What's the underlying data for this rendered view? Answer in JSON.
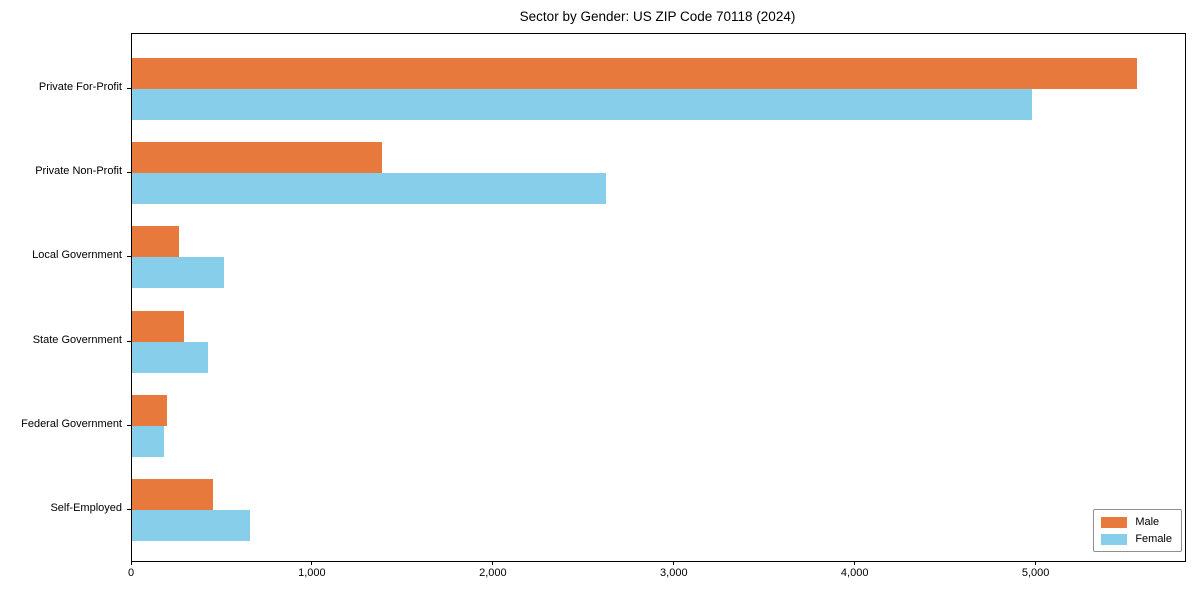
{
  "title": "Sector by Gender: US ZIP Code 70118 (2024)",
  "chart_data": {
    "type": "bar",
    "orientation": "horizontal",
    "title": "Sector by Gender: US ZIP Code 70118 (2024)",
    "categories": [
      "Private For-Profit",
      "Private Non-Profit",
      "Local Government",
      "State Government",
      "Federal Government",
      "Self-Employed"
    ],
    "series": [
      {
        "name": "Male",
        "color": "#E8793D",
        "values": [
          5555,
          1380,
          260,
          285,
          195,
          445
        ]
      },
      {
        "name": "Female",
        "color": "#87CEEB",
        "values": [
          4975,
          2620,
          510,
          420,
          175,
          650
        ]
      }
    ],
    "xlabel": "",
    "ylabel": "",
    "xlim": [
      0,
      5820
    ],
    "xticks": [
      0,
      1000,
      2000,
      3000,
      4000,
      5000
    ],
    "xtick_labels": [
      "0",
      "1,000",
      "2,000",
      "3,000",
      "4,000",
      "5,000"
    ],
    "grid": false,
    "legend_position": "lower right",
    "legend_entries": [
      "Male",
      "Female"
    ]
  }
}
